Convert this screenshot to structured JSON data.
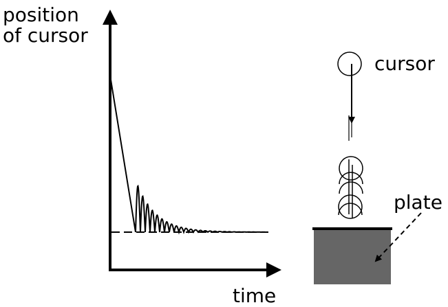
{
  "axes": {
    "y_label": [
      "position",
      "of cursor"
    ],
    "x_label": "time"
  },
  "labels": {
    "cursor": "cursor",
    "plate": "plate"
  }
}
